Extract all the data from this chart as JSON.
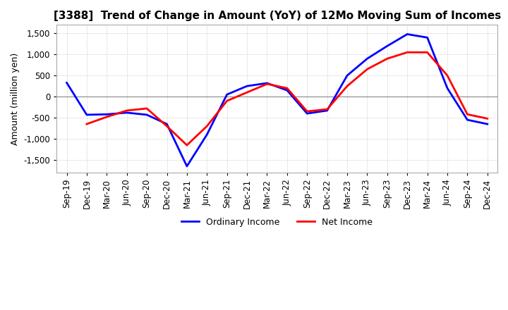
{
  "title": "[3388]  Trend of Change in Amount (YoY) of 12Mo Moving Sum of Incomes",
  "ylabel": "Amount (million yen)",
  "ylim": [
    -1800,
    1700
  ],
  "yticks": [
    -1500,
    -1000,
    -500,
    0,
    500,
    1000,
    1500
  ],
  "line1_label": "Ordinary Income",
  "line1_color": "#0000FF",
  "line2_label": "Net Income",
  "line2_color": "#FF0000",
  "x_labels": [
    "Sep-19",
    "Dec-19",
    "Mar-20",
    "Jun-20",
    "Sep-20",
    "Dec-20",
    "Mar-21",
    "Jun-21",
    "Sep-21",
    "Dec-21",
    "Mar-22",
    "Jun-22",
    "Sep-22",
    "Dec-22",
    "Mar-23",
    "Jun-23",
    "Sep-23",
    "Dec-23",
    "Mar-24",
    "Jun-24",
    "Sep-24",
    "Dec-24"
  ],
  "ordinary_income": [
    330,
    -430,
    -420,
    -380,
    -430,
    -650,
    -1650,
    -900,
    50,
    250,
    320,
    150,
    -400,
    -330,
    500,
    900,
    1200,
    1480,
    1400,
    200,
    -550,
    -650
  ],
  "net_income": [
    null,
    -650,
    -480,
    -330,
    -280,
    -700,
    -1150,
    -700,
    -100,
    100,
    300,
    200,
    -350,
    -300,
    250,
    650,
    900,
    1050,
    1050,
    500,
    -420,
    -520
  ],
  "background_color": "#FFFFFF",
  "grid_color": "#BBBBBB",
  "title_fontsize": 11,
  "axis_fontsize": 9,
  "tick_fontsize": 8.5,
  "linewidth": 2.0
}
